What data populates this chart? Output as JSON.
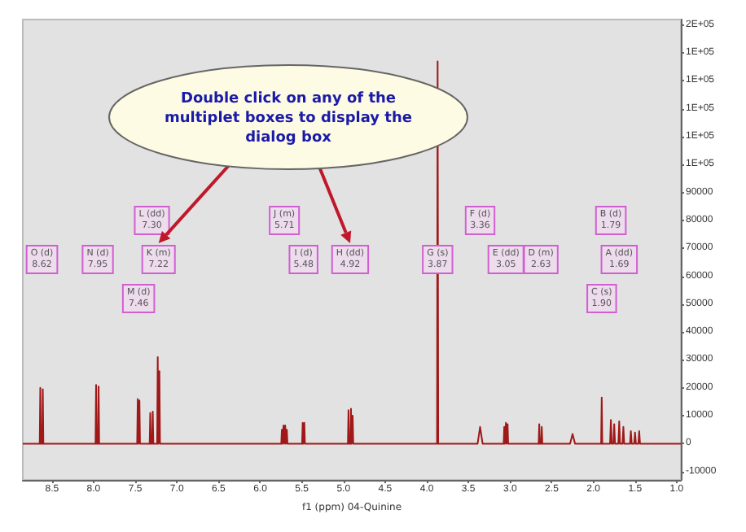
{
  "chart_data": {
    "type": "line",
    "xlabel": "f1 (ppm) 04-Quinine",
    "xlim": [
      8.85,
      0.95
    ],
    "xticks": [
      {
        "value": 8.5,
        "label": "8.5"
      },
      {
        "value": 8,
        "label": "8.0"
      },
      {
        "value": 7.5,
        "label": "7.5"
      },
      {
        "value": 7,
        "label": "7.0"
      },
      {
        "value": 6.5,
        "label": "6.5"
      },
      {
        "value": 6,
        "label": "6.0"
      },
      {
        "value": 5.5,
        "label": "5.5"
      },
      {
        "value": 5,
        "label": "5.0"
      },
      {
        "value": 4.5,
        "label": "4.5"
      },
      {
        "value": 4,
        "label": "4.0"
      },
      {
        "value": 3.5,
        "label": "3.5"
      },
      {
        "value": 3,
        "label": "3.0"
      },
      {
        "value": 2.5,
        "label": "2.5"
      },
      {
        "value": 2,
        "label": "2.0"
      },
      {
        "value": 1.5,
        "label": "1.5"
      },
      {
        "value": 1,
        "label": "1.0"
      }
    ],
    "ylim": [
      -13000,
      152000
    ],
    "yticks": [
      -10000,
      0,
      10000,
      20000,
      30000,
      40000,
      50000,
      60000,
      70000,
      80000,
      90000,
      {
        "value": 100000,
        "label": "1E+05"
      },
      {
        "value": 110000,
        "label": "1E+05"
      },
      {
        "value": 120000,
        "label": "1E+05"
      },
      {
        "value": 130000,
        "label": "1E+05"
      },
      {
        "value": 140000,
        "label": "1E+05"
      },
      {
        "value": 150000,
        "label": "2E+05"
      }
    ],
    "grid": false,
    "series": [
      {
        "color": "#a01818",
        "x": [
          8.85,
          8.647,
          8.64,
          8.633,
          8.617,
          8.61,
          8.603,
          7.977,
          7.97,
          7.963,
          7.947,
          7.94,
          7.933,
          7.477,
          7.47,
          7.463,
          7.457,
          7.45,
          7.443,
          7.327,
          7.32,
          7.313,
          7.297,
          7.29,
          7.283,
          7.237,
          7.23,
          7.223,
          7.217,
          7.21,
          7.203,
          5.747,
          5.74,
          5.733,
          5.727,
          5.72,
          5.713,
          5.707,
          5.7,
          5.693,
          5.687,
          5.68,
          5.673,
          5.497,
          5.49,
          5.483,
          5.477,
          5.47,
          5.463,
          4.947,
          4.94,
          4.933,
          4.917,
          4.91,
          4.903,
          4.897,
          4.89,
          4.883,
          3.877,
          3.87,
          3.863,
          3.39,
          3.36,
          3.33,
          3.077,
          3.07,
          3.063,
          3.057,
          3.05,
          3.043,
          3.037,
          3.03,
          3.023,
          2.657,
          2.65,
          2.643,
          2.627,
          2.62,
          2.613,
          2.28,
          2.25,
          2.22,
          1.907,
          1.9,
          1.893,
          1.8,
          1.79,
          1.78,
          1.76,
          1.75,
          1.74,
          1.7,
          1.69,
          1.68,
          1.65,
          1.64,
          1.63,
          1.56,
          1.55,
          1.54,
          1.51,
          1.5,
          1.49,
          1.46,
          1.45,
          1.44,
          0.95
        ],
        "values": [
          0,
          0,
          20000,
          0,
          0,
          19500,
          0,
          0,
          21000,
          0,
          0,
          20500,
          0,
          0,
          16000,
          0,
          0,
          15500,
          0,
          0,
          11000,
          0,
          0,
          11500,
          0,
          0,
          31000,
          0,
          0,
          26000,
          0,
          0,
          5000,
          0,
          0,
          6500,
          0,
          0,
          6500,
          0,
          0,
          5000,
          0,
          0,
          7500,
          0,
          0,
          7500,
          0,
          0,
          12000,
          0,
          0,
          12500,
          0,
          0,
          10000,
          0,
          0,
          137000,
          0,
          0,
          6000,
          0,
          0,
          6000,
          0,
          0,
          7500,
          0,
          0,
          7000,
          0,
          0,
          7000,
          0,
          0,
          6000,
          0,
          0,
          3500,
          0,
          0,
          16500,
          0,
          0,
          8500,
          0,
          0,
          7000,
          0,
          0,
          8000,
          0,
          0,
          6000,
          0,
          0,
          4500,
          0,
          0,
          4000,
          0,
          0,
          4500,
          0,
          0
        ]
      }
    ],
    "annotations": [
      "Double click on any of the multiplet boxes to display the dialog box",
      {
        "text": "O (d)\n8.62",
        "x": 8.62,
        "y": 66000
      },
      {
        "text": "N (d)\n7.95",
        "x": 7.95,
        "y": 66000
      },
      {
        "text": "M (d)\n7.46",
        "x": 7.46,
        "y": 52000
      },
      {
        "text": "L (dd)\n7.30",
        "x": 7.3,
        "y": 80000
      },
      {
        "text": "K (m)\n7.22",
        "x": 7.22,
        "y": 66000
      },
      {
        "text": "J (m)\n5.71",
        "x": 5.71,
        "y": 80000
      },
      {
        "text": "I (d)\n5.48",
        "x": 5.48,
        "y": 66000
      },
      {
        "text": "H (dd)\n4.92",
        "x": 4.92,
        "y": 66000
      },
      {
        "text": "G (s)\n3.87",
        "x": 3.87,
        "y": 66000
      },
      {
        "text": "F (d)\n3.36",
        "x": 3.36,
        "y": 80000
      },
      {
        "text": "E (dd)\n3.05",
        "x": 3.05,
        "y": 66000
      },
      {
        "text": "D (m)\n2.63",
        "x": 2.63,
        "y": 66000
      },
      {
        "text": "C (s)\n1.90",
        "x": 1.9,
        "y": 52000
      },
      {
        "text": "B (d)\n1.79",
        "x": 1.79,
        "y": 80000
      },
      {
        "text": "A (dd)\n1.69",
        "x": 1.69,
        "y": 66000
      }
    ]
  }
}
